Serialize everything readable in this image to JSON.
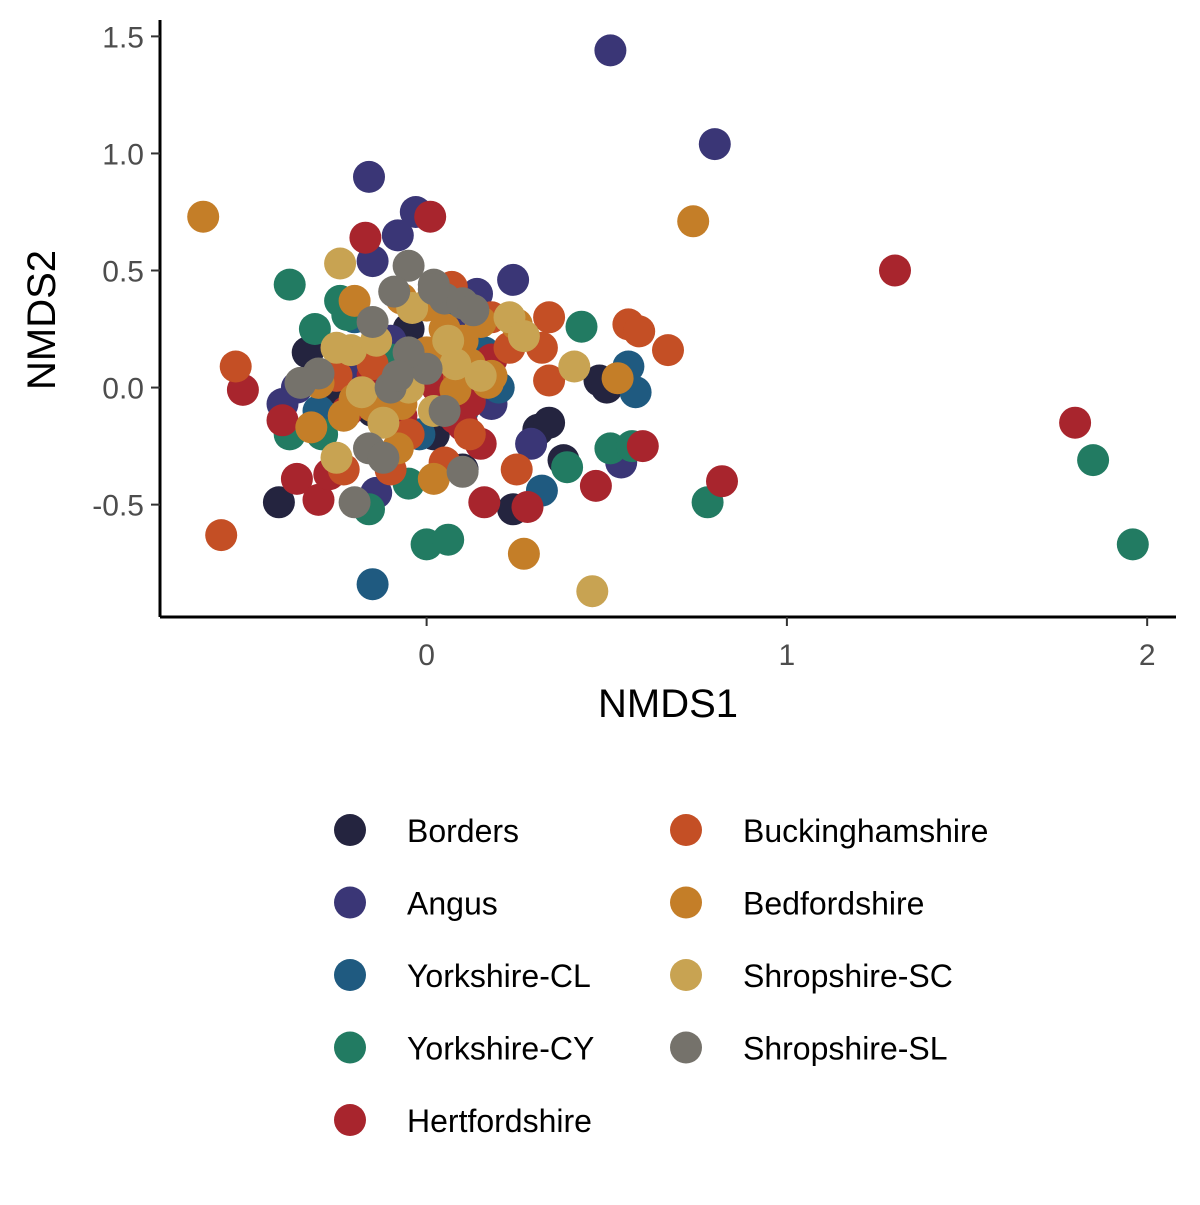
{
  "chart_data": {
    "type": "scatter",
    "title": "",
    "xlabel": "NMDS1",
    "ylabel": "NMDS2",
    "xlim": [
      -0.74,
      2.08
    ],
    "ylim": [
      -0.98,
      1.57
    ],
    "xticks": [
      "0",
      "1",
      "2"
    ],
    "xtick_values": [
      0,
      1,
      2
    ],
    "yticks": [
      "-0.5",
      "0.0",
      "0.5",
      "1.0",
      "1.5"
    ],
    "ytick_values": [
      -0.5,
      0.0,
      0.5,
      1.0,
      1.5
    ],
    "grid": false,
    "legend_position": "bottom",
    "series": [
      {
        "name": "Borders",
        "color": "#24243f",
        "points": [
          [
            -0.33,
            0.15
          ],
          [
            -0.26,
            0.0
          ],
          [
            -0.2,
            -0.05
          ],
          [
            -0.1,
            0.05
          ],
          [
            0.0,
            0.1
          ],
          [
            0.05,
            0.02
          ],
          [
            0.1,
            -0.35
          ],
          [
            -0.41,
            -0.49
          ],
          [
            0.24,
            -0.52
          ],
          [
            0.31,
            -0.18
          ],
          [
            0.34,
            -0.15
          ],
          [
            0.38,
            -0.31
          ],
          [
            0.48,
            0.03
          ],
          [
            0.5,
            0.0
          ],
          [
            -0.15,
            -0.1
          ],
          [
            0.02,
            -0.2
          ],
          [
            -0.05,
            0.25
          ],
          [
            0.12,
            0.08
          ]
        ]
      },
      {
        "name": "Angus",
        "color": "#3a3676",
        "points": [
          [
            0.51,
            1.44
          ],
          [
            0.8,
            1.04
          ],
          [
            -0.16,
            0.9
          ],
          [
            -0.03,
            0.75
          ],
          [
            -0.08,
            0.65
          ],
          [
            -0.15,
            0.54
          ],
          [
            0.24,
            0.46
          ],
          [
            0.14,
            0.4
          ],
          [
            -0.4,
            -0.07
          ],
          [
            -0.36,
            0.0
          ],
          [
            -0.14,
            -0.45
          ],
          [
            0.18,
            -0.07
          ],
          [
            0.29,
            -0.24
          ],
          [
            0.54,
            -0.32
          ],
          [
            -0.2,
            0.1
          ],
          [
            0.05,
            -0.05
          ],
          [
            -0.1,
            0.2
          ],
          [
            0.08,
            0.3
          ]
        ]
      },
      {
        "name": "Yorkshire-CL",
        "color": "#1f5a80",
        "points": [
          [
            0.56,
            0.09
          ],
          [
            0.58,
            -0.02
          ],
          [
            0.32,
            -0.44
          ],
          [
            -0.15,
            -0.84
          ],
          [
            -0.02,
            -0.2
          ],
          [
            0.16,
            0.15
          ],
          [
            -0.2,
            0.3
          ],
          [
            0.1,
            -0.1
          ],
          [
            -0.05,
            0.05
          ],
          [
            0.2,
            0.0
          ],
          [
            -0.3,
            -0.1
          ],
          [
            0.05,
            0.35
          ]
        ]
      },
      {
        "name": "Yorkshire-CY",
        "color": "#227b62",
        "points": [
          [
            1.96,
            -0.67
          ],
          [
            1.85,
            -0.31
          ],
          [
            0.78,
            -0.49
          ],
          [
            0.0,
            -0.67
          ],
          [
            0.06,
            -0.65
          ],
          [
            0.43,
            0.26
          ],
          [
            0.51,
            -0.26
          ],
          [
            0.57,
            -0.25
          ],
          [
            0.39,
            -0.34
          ],
          [
            -0.38,
            0.44
          ],
          [
            -0.31,
            0.25
          ],
          [
            -0.24,
            0.37
          ],
          [
            -0.38,
            -0.2
          ],
          [
            -0.16,
            -0.52
          ],
          [
            -0.05,
            -0.41
          ],
          [
            -0.29,
            -0.2
          ],
          [
            -0.22,
            0.31
          ],
          [
            -0.1,
            0.12
          ],
          [
            0.12,
            -0.05
          ]
        ]
      },
      {
        "name": "Hertfordshire",
        "color": "#a8252d",
        "points": [
          [
            1.3,
            0.5
          ],
          [
            1.8,
            -0.15
          ],
          [
            0.82,
            -0.4
          ],
          [
            0.6,
            -0.25
          ],
          [
            0.47,
            -0.42
          ],
          [
            0.28,
            -0.51
          ],
          [
            0.16,
            -0.49
          ],
          [
            0.15,
            -0.24
          ],
          [
            0.01,
            0.73
          ],
          [
            -0.17,
            0.64
          ],
          [
            -0.51,
            -0.01
          ],
          [
            -0.4,
            -0.14
          ],
          [
            -0.36,
            -0.39
          ],
          [
            -0.3,
            -0.48
          ],
          [
            -0.27,
            -0.37
          ],
          [
            0.08,
            -0.13
          ],
          [
            0.1,
            -0.16
          ],
          [
            -0.15,
            0.05
          ],
          [
            0.03,
            0.0
          ],
          [
            -0.07,
            -0.12
          ],
          [
            0.06,
            0.4
          ],
          [
            0.18,
            0.12
          ],
          [
            -0.22,
            -0.1
          ],
          [
            0.12,
            -0.06
          ]
        ]
      },
      {
        "name": "Buckinghamshire",
        "color": "#c44f25",
        "points": [
          [
            -0.57,
            -0.63
          ],
          [
            -0.53,
            0.09
          ],
          [
            0.34,
            0.3
          ],
          [
            0.32,
            0.17
          ],
          [
            0.34,
            0.03
          ],
          [
            0.56,
            0.27
          ],
          [
            0.59,
            0.24
          ],
          [
            0.67,
            0.16
          ],
          [
            0.25,
            -0.35
          ],
          [
            0.23,
            0.17
          ],
          [
            0.07,
            0.43
          ],
          [
            0.05,
            -0.32
          ],
          [
            -0.23,
            -0.35
          ],
          [
            -0.1,
            -0.35
          ],
          [
            0.12,
            -0.2
          ],
          [
            -0.15,
            0.1
          ],
          [
            0.18,
            0.3
          ],
          [
            -0.05,
            -0.2
          ],
          [
            0.09,
            0.05
          ],
          [
            -0.25,
            0.05
          ]
        ]
      },
      {
        "name": "Bedfordshire",
        "color": "#c47e28",
        "points": [
          [
            -0.62,
            0.73
          ],
          [
            0.74,
            0.71
          ],
          [
            0.27,
            -0.71
          ],
          [
            0.02,
            -0.39
          ],
          [
            -0.07,
            -0.07
          ],
          [
            -0.2,
            -0.05
          ],
          [
            -0.32,
            -0.17
          ],
          [
            -0.23,
            -0.12
          ],
          [
            -0.3,
            0.02
          ],
          [
            -0.2,
            0.37
          ],
          [
            0.0,
            0.35
          ],
          [
            -0.07,
            0.38
          ],
          [
            0.05,
            0.25
          ],
          [
            0.1,
            0.2
          ],
          [
            0.15,
            0.28
          ],
          [
            0.17,
            0.02
          ],
          [
            0.18,
            0.05
          ],
          [
            0.53,
            0.04
          ],
          [
            0.0,
            0.15
          ],
          [
            0.02,
            0.12
          ],
          [
            -0.08,
            -0.26
          ],
          [
            -0.15,
            -0.08
          ],
          [
            0.08,
            -0.01
          ],
          [
            0.12,
            0.1
          ],
          [
            0.25,
            0.27
          ]
        ]
      },
      {
        "name": "Shropshire-SC",
        "color": "#c8a352",
        "points": [
          [
            0.46,
            -0.87
          ],
          [
            0.41,
            0.09
          ],
          [
            0.23,
            0.3
          ],
          [
            0.27,
            0.22
          ],
          [
            -0.24,
            0.53
          ],
          [
            -0.21,
            0.16
          ],
          [
            -0.14,
            0.2
          ],
          [
            -0.25,
            0.17
          ],
          [
            -0.12,
            -0.15
          ],
          [
            -0.25,
            -0.3
          ],
          [
            -0.04,
            0.34
          ],
          [
            0.06,
            0.2
          ],
          [
            0.15,
            0.05
          ],
          [
            -0.05,
            0.0
          ],
          [
            0.08,
            0.1
          ],
          [
            -0.18,
            -0.02
          ],
          [
            0.02,
            -0.1
          ]
        ]
      },
      {
        "name": "Shropshire-SL",
        "color": "#75726b",
        "points": [
          [
            -0.2,
            -0.49
          ],
          [
            0.1,
            -0.36
          ],
          [
            -0.16,
            -0.26
          ],
          [
            -0.12,
            -0.3
          ],
          [
            -0.05,
            0.52
          ],
          [
            -0.09,
            0.41
          ],
          [
            0.02,
            0.44
          ],
          [
            0.05,
            0.38
          ],
          [
            0.1,
            0.36
          ],
          [
            0.13,
            0.33
          ],
          [
            -0.15,
            0.28
          ],
          [
            -0.3,
            0.06
          ],
          [
            -0.35,
            0.02
          ],
          [
            0.0,
            0.08
          ],
          [
            -0.05,
            0.15
          ],
          [
            -0.1,
            0.0
          ],
          [
            0.02,
            0.42
          ],
          [
            -0.08,
            0.05
          ],
          [
            0.05,
            -0.1
          ]
        ]
      }
    ]
  }
}
